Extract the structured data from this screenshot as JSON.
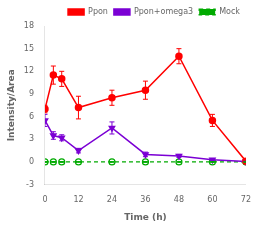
{
  "chart_data": {
    "type": "line",
    "x": [
      0,
      3,
      6,
      12,
      24,
      36,
      48,
      60,
      72
    ],
    "series": [
      {
        "name": "Ppon",
        "color": "#ff0000",
        "marker": "circle",
        "line_style": "solid",
        "values": [
          7.0,
          11.5,
          11.0,
          7.2,
          8.5,
          9.5,
          14.0,
          5.5,
          0.1
        ],
        "errors": [
          0.5,
          1.2,
          1.0,
          1.5,
          1.0,
          1.2,
          1.0,
          0.8,
          0.1
        ]
      },
      {
        "name": "Ppon+omega3",
        "color": "#7b00d4",
        "marker": "triangle_down",
        "line_style": "solid",
        "values": [
          5.5,
          3.5,
          3.2,
          1.5,
          4.5,
          1.0,
          0.8,
          0.3,
          0.05
        ],
        "errors": [
          0.8,
          0.5,
          0.4,
          0.3,
          0.8,
          0.3,
          0.2,
          0.1,
          0.05
        ]
      },
      {
        "name": "Mock",
        "color": "#00aa00",
        "marker": "open_circle",
        "line_style": "dashed",
        "values": [
          0.0,
          0.0,
          0.0,
          0.0,
          0.0,
          0.0,
          0.0,
          0.0,
          0.0
        ],
        "errors": [
          0.05,
          0.05,
          0.05,
          0.05,
          0.05,
          0.05,
          0.05,
          0.05,
          0.05
        ]
      }
    ],
    "xlabel": "Time (h)",
    "ylabel": "Intensity/Area",
    "xlim": [
      0,
      72
    ],
    "xticks": [
      0,
      12,
      24,
      36,
      48,
      60,
      72
    ],
    "ylim": [
      -3,
      18
    ],
    "yticks": [
      -3,
      0,
      3,
      6,
      9,
      12,
      15,
      18
    ],
    "grid": false,
    "legend": "upper right"
  }
}
